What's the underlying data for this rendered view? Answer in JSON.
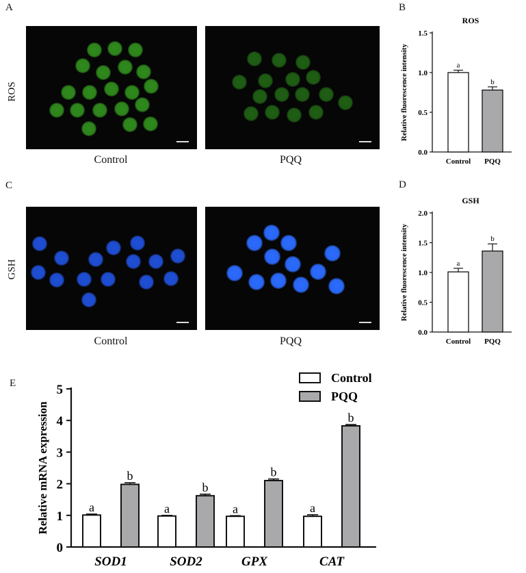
{
  "panels": {
    "A": "A",
    "B": "B",
    "C": "C",
    "D": "D",
    "E": "E"
  },
  "row_labels": {
    "ros": "ROS",
    "gsh": "GSH"
  },
  "image_captions": {
    "a_left": "Control",
    "a_right": "PQQ",
    "c_left": "Control",
    "c_right": "PQQ"
  },
  "colors": {
    "ros_cell": "#2f8a1c",
    "ros_cell_dim": "#1f5f14",
    "gsh_cell": "#1f4fd6",
    "gsh_cell_bright": "#2b6bff",
    "bar_control": "#ffffff",
    "bar_pqq": "#a9a9ab",
    "stroke": "#111111"
  },
  "chart_data": [
    {
      "id": "B",
      "type": "bar",
      "title": "ROS",
      "ylabel": "Relative fluorescence intensity",
      "categories": [
        "Control",
        "PQQ"
      ],
      "values": [
        1.0,
        0.78
      ],
      "errors": [
        0.03,
        0.04
      ],
      "letters": [
        "a",
        "b"
      ],
      "ylim": [
        0,
        1.5
      ],
      "yticks": [
        0.0,
        0.5,
        1.0,
        1.5
      ],
      "ytick_labels": [
        "0.0",
        "0.5",
        "1.0",
        "1.5"
      ]
    },
    {
      "id": "D",
      "type": "bar",
      "title": "GSH",
      "ylabel": "Relative fluorescence intensity",
      "categories": [
        "Control",
        "PQQ"
      ],
      "values": [
        1.01,
        1.36
      ],
      "errors": [
        0.06,
        0.12
      ],
      "letters": [
        "a",
        "b"
      ],
      "ylim": [
        0,
        2.0
      ],
      "yticks": [
        0.0,
        0.5,
        1.0,
        1.5,
        2.0
      ],
      "ytick_labels": [
        "0.0",
        "0.5",
        "1.0",
        "1.5",
        "2.0"
      ]
    },
    {
      "id": "E",
      "type": "bar",
      "ylabel": "Relative mRNA expression",
      "categories": [
        "SOD1",
        "SOD2",
        "GPX",
        "CAT"
      ],
      "series": [
        {
          "name": "Control",
          "values": [
            1.01,
            0.98,
            0.97,
            0.97
          ],
          "errors": [
            0.03,
            0.02,
            0.02,
            0.05
          ],
          "letters": [
            "a",
            "a",
            "a",
            "a"
          ]
        },
        {
          "name": "PQQ",
          "values": [
            1.98,
            1.62,
            2.1,
            3.83
          ],
          "errors": [
            0.05,
            0.05,
            0.05,
            0.04
          ],
          "letters": [
            "b",
            "b",
            "b",
            "b"
          ]
        }
      ],
      "ylim": [
        0,
        5
      ],
      "yticks": [
        0,
        1,
        2,
        3,
        4,
        5
      ],
      "ytick_labels": [
        "0",
        "1",
        "2",
        "3",
        "4",
        "5"
      ],
      "legend_position": "top-right"
    }
  ]
}
